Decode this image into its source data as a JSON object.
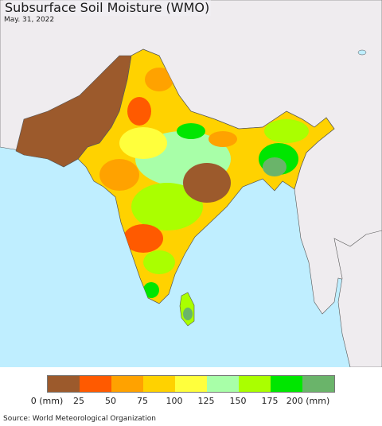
{
  "title": "Subsurface Soil Moisture (WMO)",
  "date": "May. 31, 2022",
  "legend": {
    "units_label": "0 (mm)",
    "tick_labels": [
      "0 (mm)",
      "25",
      "50",
      "75",
      "100",
      "125",
      "150",
      "175",
      "200 (mm)"
    ],
    "colors": [
      "#9c5a2c",
      "#ff5a00",
      "#ffa200",
      "#ffd200",
      "#ffff3c",
      "#a8ffa8",
      "#aaff00",
      "#00e600",
      "#6ab46a"
    ]
  },
  "source": "Source: World Meteorological Organization",
  "map_colors": {
    "ocean": "#bfeeff",
    "land_outside": "#efecef",
    "border": "#555555"
  }
}
